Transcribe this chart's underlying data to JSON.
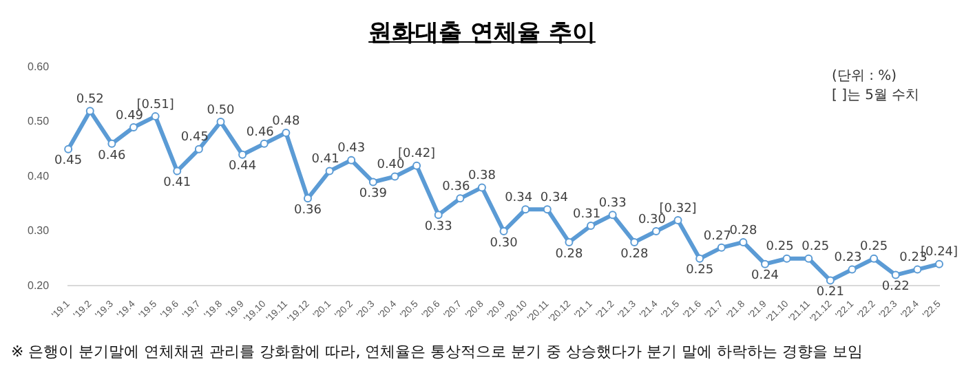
{
  "chart_data": {
    "type": "line",
    "title": "원화대출 연체율 추이",
    "categories": [
      "'19.1",
      "'19.2",
      "'19.3",
      "'19.4",
      "'19.5",
      "'19.6",
      "'19.7",
      "'19.8",
      "'19.9",
      "'19.10",
      "'19.11",
      "'19.12",
      "'20.1",
      "'20.2",
      "'20.3",
      "'20.4",
      "'20.5",
      "'20.6",
      "'20.7",
      "'20.8",
      "'20.9",
      "'20.10",
      "'20.11",
      "'20.12",
      "'21.1",
      "'21.2",
      "'21.3",
      "'21.4",
      "'21.5",
      "'21.6",
      "'21.7",
      "'21.8",
      "'21.9",
      "'21.10",
      "'21.11",
      "'21.12",
      "'22.1",
      "'22.2",
      "'22.3",
      "'22.4",
      "'22.5"
    ],
    "series": [
      {
        "color": "#5b9bd5",
        "values": [
          0.45,
          0.52,
          0.46,
          0.49,
          0.51,
          0.41,
          0.45,
          0.5,
          0.44,
          0.46,
          0.48,
          0.36,
          0.41,
          0.43,
          0.39,
          0.4,
          0.42,
          0.33,
          0.36,
          0.38,
          0.3,
          0.34,
          0.34,
          0.28,
          0.31,
          0.33,
          0.28,
          0.3,
          0.32,
          0.25,
          0.27,
          0.28,
          0.24,
          0.25,
          0.25,
          0.21,
          0.23,
          0.25,
          0.22,
          0.23,
          0.24
        ],
        "value_labels": [
          "0.45",
          "0.52",
          "0.46",
          "0.49",
          "[0.51]",
          "0.41",
          "0.45",
          "0.50",
          "0.44",
          "0.46",
          "0.48",
          "0.36",
          "0.41",
          "0.43",
          "0.39",
          "0.40",
          "[0.42]",
          "0.33",
          "0.36",
          "0.38",
          "0.30",
          "0.34",
          "0.34",
          "0.28",
          "0.31",
          "0.33",
          "0.28",
          "0.30",
          "[0.32]",
          "0.25",
          "0.27",
          "0.28",
          "0.24",
          "0.25",
          "0.25",
          "0.21",
          "0.23",
          "0.25",
          "0.22",
          "0.23",
          "[0.24]"
        ]
      }
    ],
    "ylim": [
      0.2,
      0.6
    ],
    "yticks": [
      {
        "value": 0.2,
        "label": "0.20"
      },
      {
        "value": 0.3,
        "label": "0.30"
      },
      {
        "value": 0.4,
        "label": "0.40"
      },
      {
        "value": 0.5,
        "label": "0.50"
      },
      {
        "value": 0.6,
        "label": "0.60"
      }
    ],
    "grid": false,
    "legend": false,
    "marker": "circle",
    "line_style": "solid",
    "annotations": [
      "(단위 : %)",
      "[ ]는 5월 수치",
      "※ 은행이 분기말에 연체채권 관리를 강화함에 따라, 연체율은 통상적으로 분기 중 상승했다가 분기 말에 하락하는 경향을 보임"
    ]
  }
}
